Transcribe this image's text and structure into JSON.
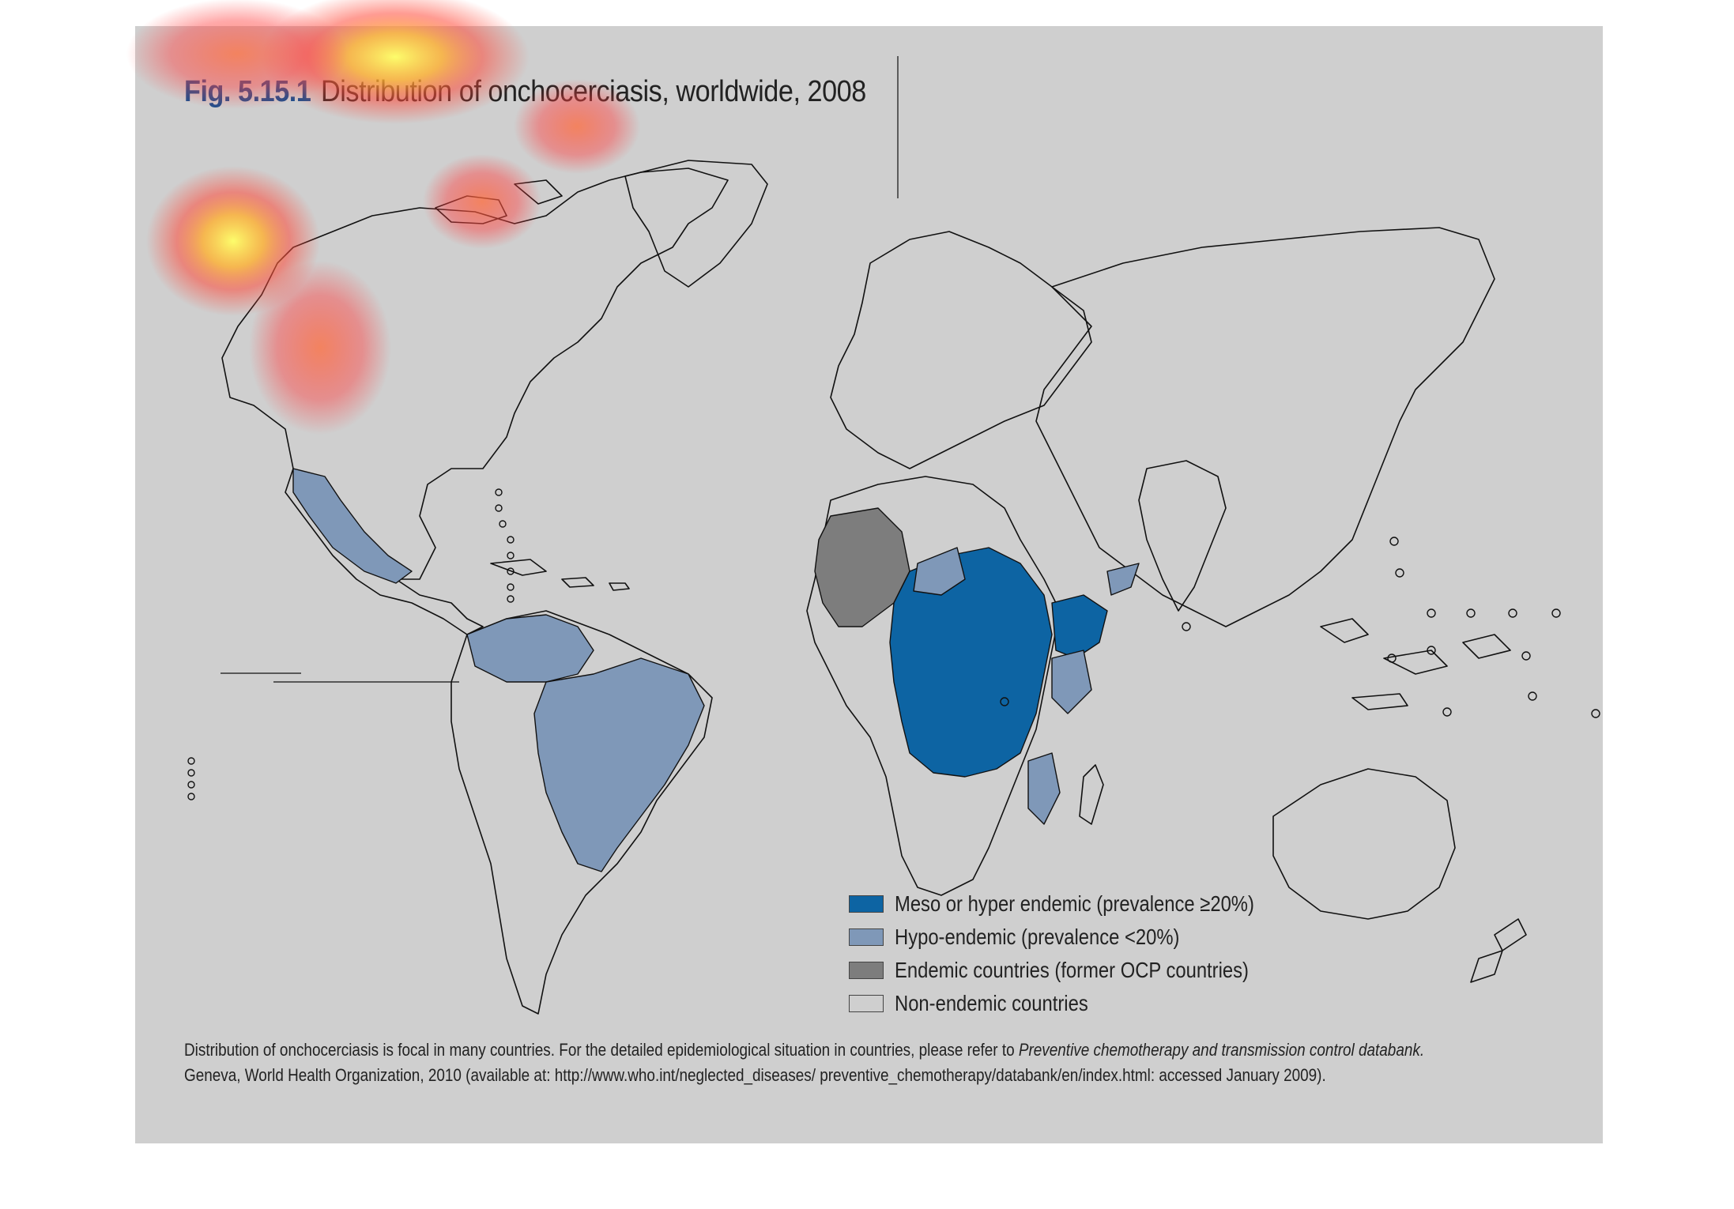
{
  "figure": {
    "fig_number": "Fig. 5.15.1",
    "title": "Distribution of onchocerciasis, worldwide, 2008"
  },
  "legend": {
    "items": [
      {
        "label": "Meso or hyper endemic (prevalence ≥20%)",
        "color": "#0d64a3"
      },
      {
        "label": "Hypo-endemic (prevalence <20%)",
        "color": "#7f98b8"
      },
      {
        "label": "Endemic countries (former OCP countries)",
        "color": "#7d7d7d"
      },
      {
        "label": "Non-endemic countries",
        "color": "#cfcfcf"
      }
    ]
  },
  "note": {
    "line1_text": "Distribution of onchocerciasis is focal in many countries. For the detailed epidemiological situation in countries, please refer to ",
    "line1_italic": "Preventive chemotherapy and transmission control databank.",
    "line2_text": "Geneva, World Health Organization, 2010 (available at: http://www.who.int/neglected_diseases/ preventive_chemotherapy/databank/en/index.html: accessed January 2009)."
  },
  "colors": {
    "panel_bg": "#cfcfcf",
    "meso_hyper": "#0d64a3",
    "hypo": "#7f98b8",
    "former_ocp": "#7d7d7d",
    "outline": "#111111",
    "title_accent": "#1f4e8c"
  },
  "overlay": {
    "type": "attention-heatmap"
  }
}
